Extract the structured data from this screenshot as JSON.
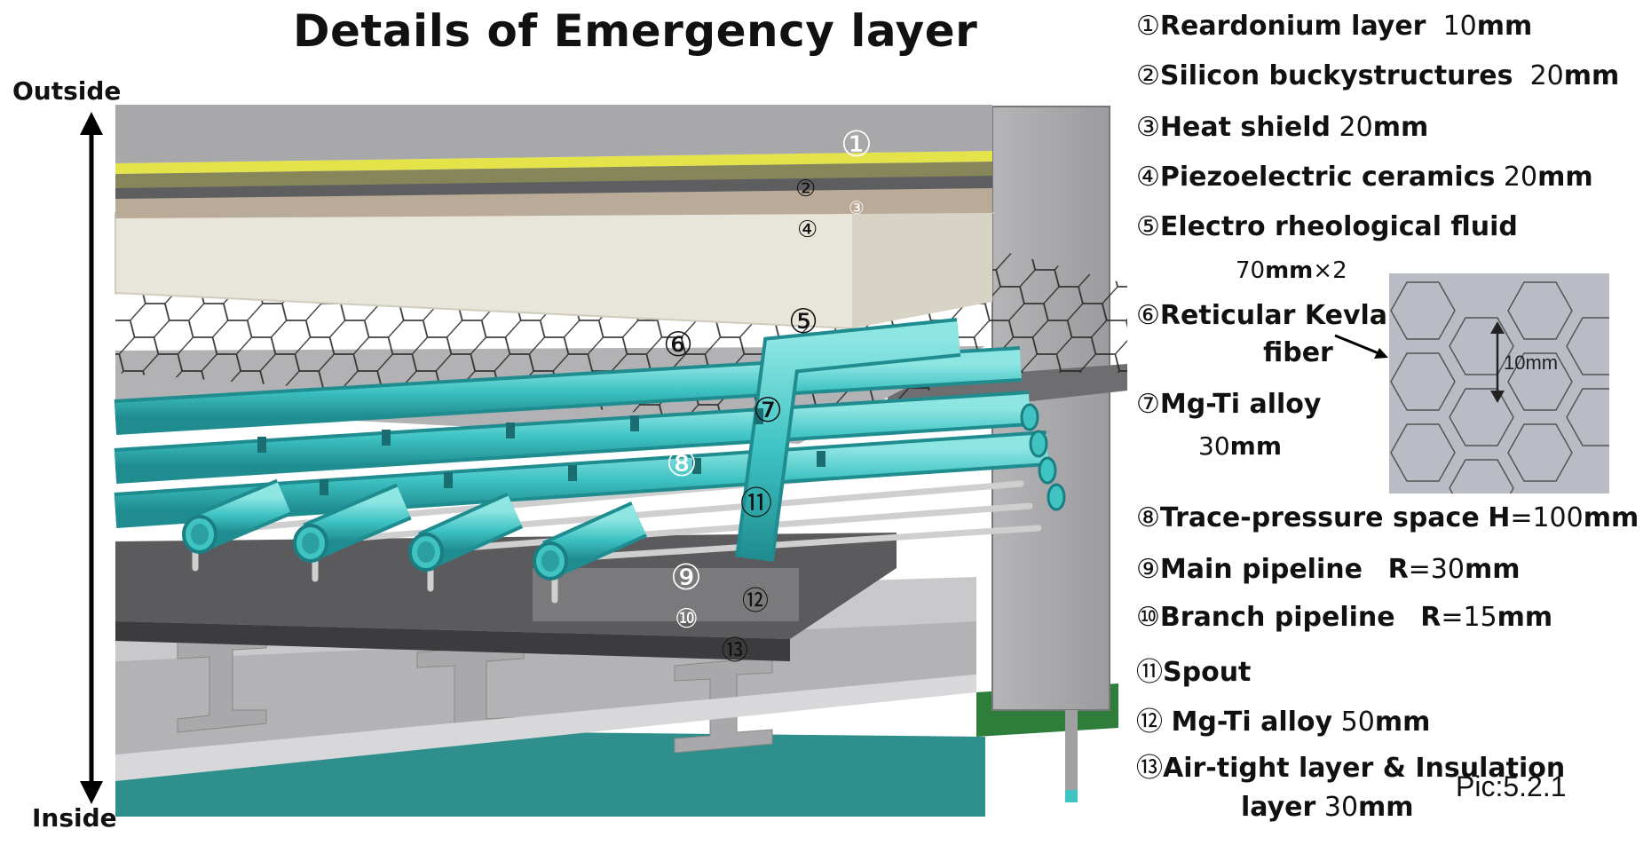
{
  "title": "Details of  Emergency layer",
  "axis": {
    "top": "Outside",
    "bottom": "Inside"
  },
  "markers": [
    "①",
    "②",
    "③",
    "④",
    "⑤",
    "⑥",
    "⑦",
    "⑧",
    "⑪",
    "⑨",
    "⑫",
    "⑩",
    "⑬"
  ],
  "legend": [
    {
      "num": "①",
      "name": "Reardonium layer",
      "value": "10",
      "unit": "mm"
    },
    {
      "num": "②",
      "name": "Silicon buckystructures",
      "value": "20",
      "unit": "mm"
    },
    {
      "num": "③",
      "name": "Heat shield",
      "value": "20",
      "unit": "mm"
    },
    {
      "num": "④",
      "name": "Piezoelectric ceramics",
      "value": "20",
      "unit": "mm"
    },
    {
      "num": "⑤",
      "name": "Electro rheological fluid",
      "value": "70",
      "unit": "mm",
      "suffix": "×2"
    },
    {
      "num": "⑥",
      "name": "Reticular Kevlar",
      "name2": "fiber"
    },
    {
      "num": "⑦",
      "name": "Mg-Ti alloy",
      "value": "30",
      "unit": "mm"
    },
    {
      "num": "⑧",
      "name": "Trace-pressure space",
      "param": "H",
      "value": "=100",
      "unit": "mm"
    },
    {
      "num": "⑨",
      "name": "Main pipeline",
      "param": "R",
      "value": "=30",
      "unit": "mm"
    },
    {
      "num": "⑩",
      "name": "Branch pipeline",
      "param": "R",
      "value": "=15",
      "unit": "mm"
    },
    {
      "num": "⑪",
      "name": "Spout"
    },
    {
      "num": "⑫",
      "name": "Mg-Ti alloy",
      "value": "50",
      "unit": "mm"
    },
    {
      "num": "⑬",
      "name": "Air-tight layer & Insulation",
      "name2": "layer",
      "value": "30",
      "unit": "mm"
    }
  ],
  "inset_label": "10mm",
  "pic_label": "Pic:5.2.1",
  "colors": {
    "pipe": "#3fc3c3",
    "pipe_dark": "#1e8f93",
    "floor": "#2f8f8c",
    "layer_gray": "#a8a8aa",
    "yellow": "#e4e44a",
    "tan": "#b9ab97",
    "cream": "#e8e6da"
  }
}
